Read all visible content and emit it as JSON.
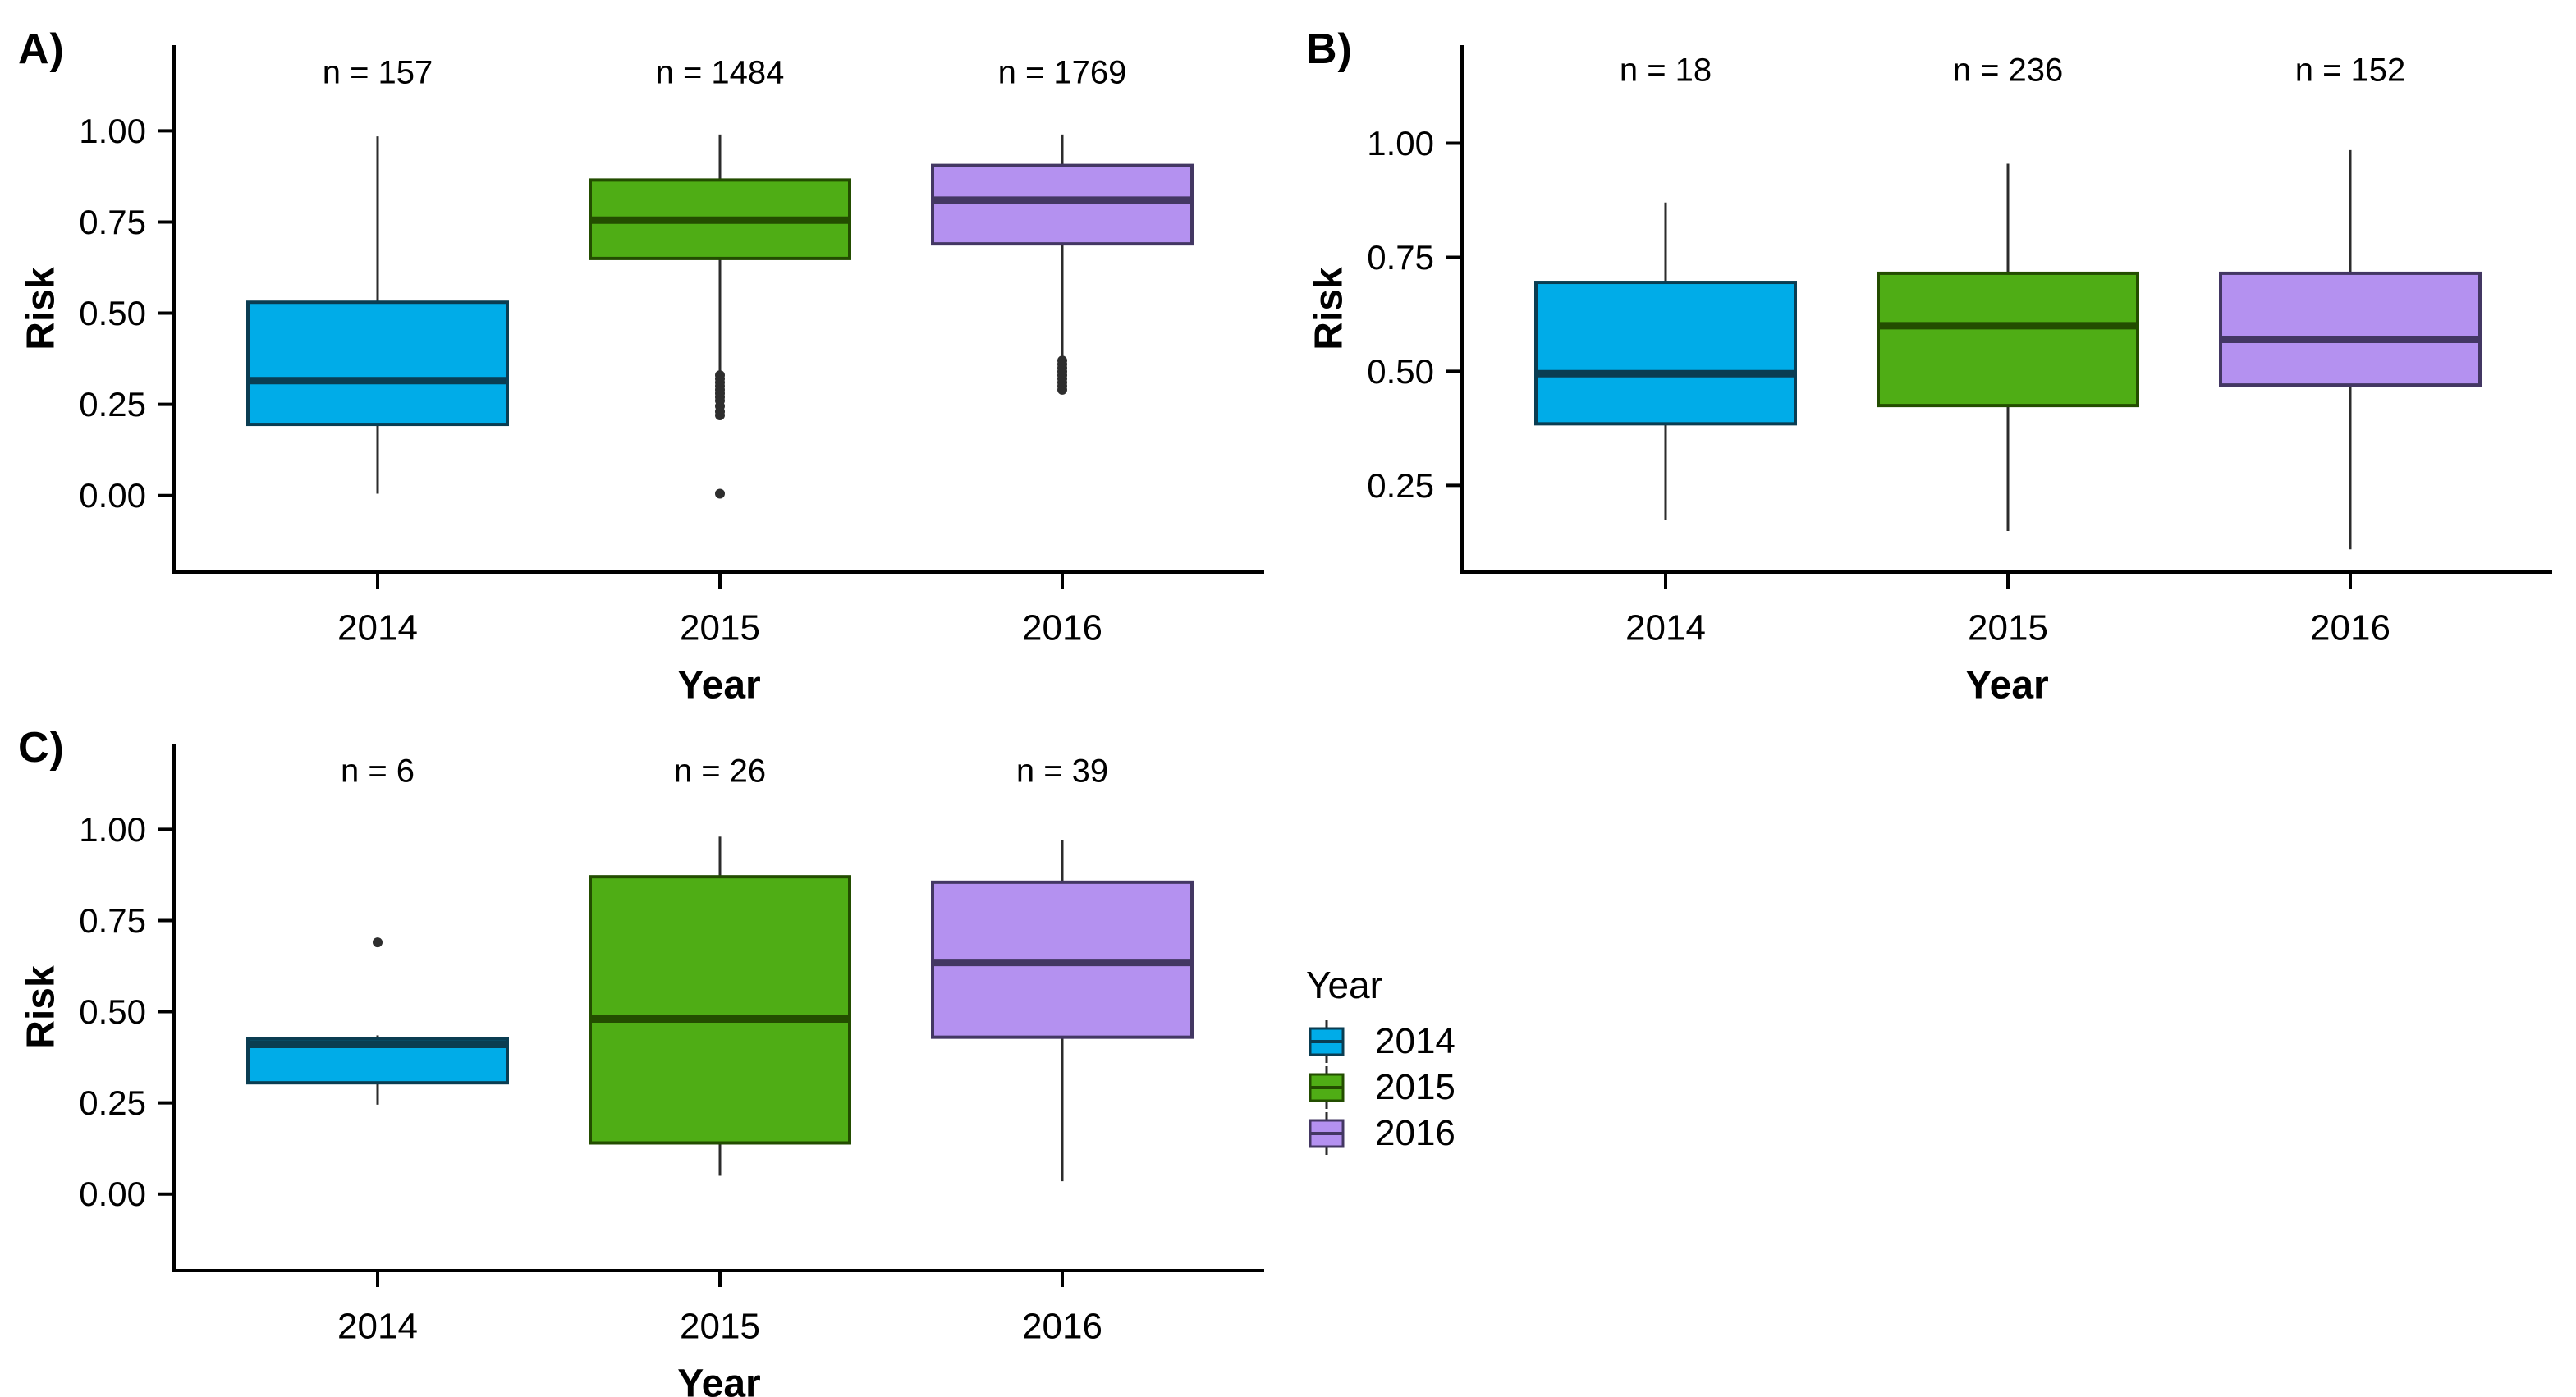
{
  "page": {
    "background": "#ffffff"
  },
  "colors": {
    "fill": {
      "y2014": "#00ACE8",
      "y2015": "#4FAD15",
      "y2016": "#B491F0"
    },
    "stroke": {
      "y2014": "#0A3D52",
      "y2015": "#234D00",
      "y2016": "#433763"
    },
    "whisker": "#2b2b2b",
    "outlier": "#2e2e2e",
    "axis": "#000000"
  },
  "legend": {
    "title": "Year",
    "items": [
      {
        "label": "2014",
        "fill": "#00ACE8",
        "stroke": "#0A3D52"
      },
      {
        "label": "2015",
        "fill": "#4FAD15",
        "stroke": "#234D00"
      },
      {
        "label": "2016",
        "fill": "#B491F0",
        "stroke": "#433763"
      }
    ]
  },
  "chart_data": [
    {
      "type": "boxplot",
      "id": "A",
      "label": "A)",
      "xlabel": "Year",
      "ylabel": "Risk",
      "categories": [
        "2014",
        "2015",
        "2016"
      ],
      "n_labels": [
        "n = 157",
        "n = 1484",
        "n = 1769"
      ],
      "n_label_value": 1.16,
      "yticks": [
        0,
        0.25,
        0.5,
        0.75,
        1.0
      ],
      "ytick_labels": [
        "0.00",
        "0.25",
        "0.50",
        "0.75",
        "1.00"
      ],
      "ylim": [
        -0.21,
        1.235
      ],
      "grid": false,
      "series": [
        {
          "category": "2014",
          "whisker_low": 0.005,
          "q1": 0.195,
          "median": 0.315,
          "q3": 0.53,
          "whisker_high": 0.985,
          "outliers": []
        },
        {
          "category": "2015",
          "whisker_low": 0.335,
          "q1": 0.65,
          "median": 0.755,
          "q3": 0.865,
          "whisker_high": 0.99,
          "outliers": [
            0.33,
            0.32,
            0.31,
            0.3,
            0.29,
            0.28,
            0.27,
            0.26,
            0.245,
            0.23,
            0.22,
            0.005
          ]
        },
        {
          "category": "2016",
          "whisker_low": 0.375,
          "q1": 0.69,
          "median": 0.81,
          "q3": 0.905,
          "whisker_high": 0.99,
          "outliers": [
            0.37,
            0.36,
            0.35,
            0.34,
            0.33,
            0.32,
            0.31,
            0.3,
            0.29
          ]
        }
      ]
    },
    {
      "type": "boxplot",
      "id": "B",
      "label": "B)",
      "xlabel": "Year",
      "ylabel": "Risk",
      "categories": [
        "2014",
        "2015",
        "2016"
      ],
      "n_labels": [
        "n = 18",
        "n = 236",
        "n = 152"
      ],
      "n_label_value": 1.16,
      "yticks": [
        0.25,
        0.5,
        0.75,
        1.0
      ],
      "ytick_labels": [
        "0.25",
        "0.50",
        "0.75",
        "1.00"
      ],
      "ylim": [
        0.06,
        1.215
      ],
      "grid": false,
      "series": [
        {
          "category": "2014",
          "whisker_low": 0.175,
          "q1": 0.385,
          "median": 0.495,
          "q3": 0.695,
          "whisker_high": 0.87,
          "outliers": []
        },
        {
          "category": "2015",
          "whisker_low": 0.15,
          "q1": 0.425,
          "median": 0.6,
          "q3": 0.715,
          "whisker_high": 0.955,
          "outliers": []
        },
        {
          "category": "2016",
          "whisker_low": 0.11,
          "q1": 0.47,
          "median": 0.57,
          "q3": 0.715,
          "whisker_high": 0.985,
          "outliers": []
        }
      ]
    },
    {
      "type": "boxplot",
      "id": "C",
      "label": "C)",
      "xlabel": "Year",
      "ylabel": "Risk",
      "categories": [
        "2014",
        "2015",
        "2016"
      ],
      "n_labels": [
        "n = 6",
        "n = 26",
        "n = 39"
      ],
      "n_label_value": 1.16,
      "yticks": [
        0,
        0.25,
        0.5,
        0.75,
        1.0
      ],
      "ytick_labels": [
        "0.00",
        "0.25",
        "0.50",
        "0.75",
        "1.00"
      ],
      "ylim": [
        -0.21,
        1.235
      ],
      "grid": false,
      "series": [
        {
          "category": "2014",
          "whisker_low": 0.245,
          "q1": 0.305,
          "median": 0.41,
          "q3": 0.425,
          "whisker_high": 0.435,
          "outliers": [
            0.69
          ]
        },
        {
          "category": "2015",
          "whisker_low": 0.05,
          "q1": 0.14,
          "median": 0.48,
          "q3": 0.87,
          "whisker_high": 0.98,
          "outliers": []
        },
        {
          "category": "2016",
          "whisker_low": 0.035,
          "q1": 0.43,
          "median": 0.635,
          "q3": 0.855,
          "whisker_high": 0.97,
          "outliers": []
        }
      ]
    }
  ]
}
